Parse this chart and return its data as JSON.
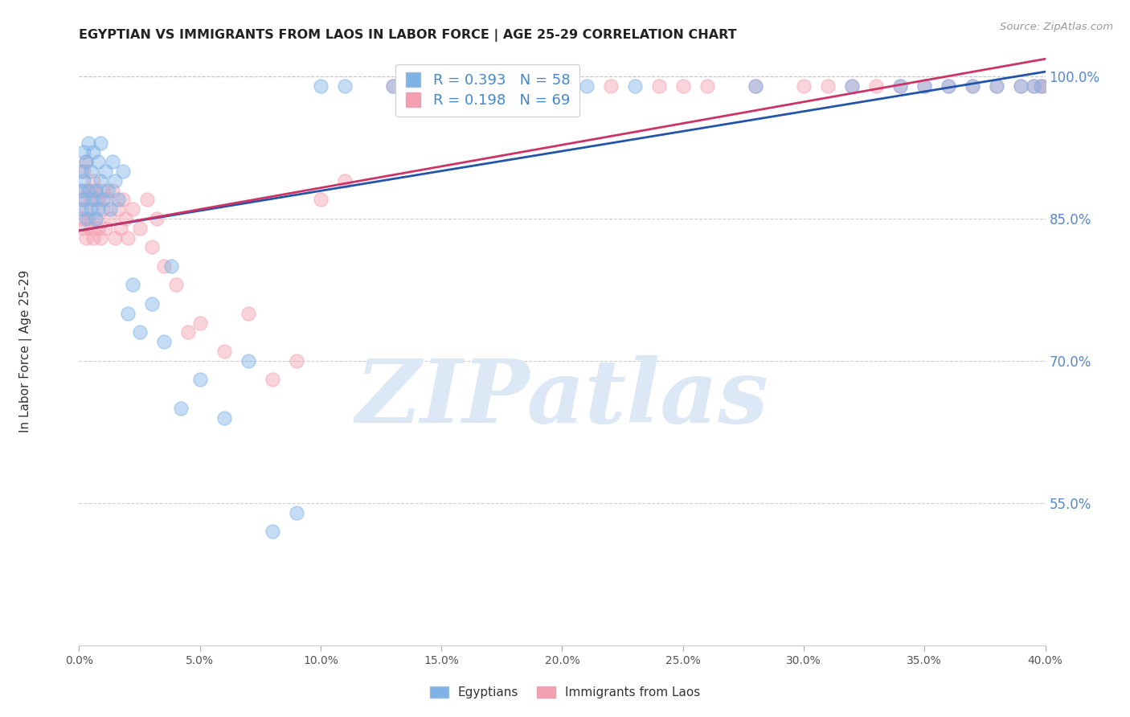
{
  "title": "EGYPTIAN VS IMMIGRANTS FROM LAOS IN LABOR FORCE | AGE 25-29 CORRELATION CHART",
  "source": "Source: ZipAtlas.com",
  "ylabel": "In Labor Force | Age 25-29",
  "xlim": [
    0.0,
    0.4
  ],
  "ylim": [
    0.4,
    1.02
  ],
  "xticks": [
    0.0,
    0.05,
    0.1,
    0.15,
    0.2,
    0.25,
    0.3,
    0.35,
    0.4
  ],
  "yticks": [
    0.55,
    0.7,
    0.85,
    1.0
  ],
  "ytick_labels": [
    "55.0%",
    "70.0%",
    "85.0%",
    "100.0%"
  ],
  "xtick_labels": [
    "0.0%",
    "5.0%",
    "10.0%",
    "15.0%",
    "20.0%",
    "25.0%",
    "30.0%",
    "35.0%",
    "40.0%"
  ],
  "legend_line1": "R = 0.393   N = 58",
  "legend_line2": "R = 0.198   N = 69",
  "blue_color": "#7EB3E8",
  "pink_color": "#F4A0B0",
  "trend_blue_color": "#2255AA",
  "trend_pink_color": "#CC3366",
  "watermark": "ZIPatlas",
  "watermark_color": "#DCE8F5",
  "blue_label": "Egyptians",
  "pink_label": "Immigrants from Laos",
  "egyptians_x": [
    0.001,
    0.001,
    0.001,
    0.002,
    0.002,
    0.002,
    0.003,
    0.003,
    0.004,
    0.004,
    0.005,
    0.005,
    0.006,
    0.006,
    0.007,
    0.007,
    0.008,
    0.008,
    0.009,
    0.009,
    0.01,
    0.011,
    0.012,
    0.013,
    0.014,
    0.015,
    0.016,
    0.018,
    0.02,
    0.022,
    0.025,
    0.03,
    0.035,
    0.038,
    0.042,
    0.05,
    0.06,
    0.07,
    0.08,
    0.09,
    0.1,
    0.11,
    0.13,
    0.15,
    0.17,
    0.19,
    0.21,
    0.23,
    0.28,
    0.32,
    0.34,
    0.35,
    0.36,
    0.37,
    0.38,
    0.39,
    0.395,
    0.398
  ],
  "egyptians_y": [
    0.86,
    0.88,
    0.9,
    0.87,
    0.89,
    0.92,
    0.85,
    0.91,
    0.88,
    0.93,
    0.86,
    0.9,
    0.87,
    0.92,
    0.85,
    0.88,
    0.91,
    0.86,
    0.89,
    0.93,
    0.87,
    0.9,
    0.88,
    0.86,
    0.91,
    0.89,
    0.87,
    0.9,
    0.75,
    0.78,
    0.73,
    0.76,
    0.72,
    0.8,
    0.65,
    0.68,
    0.64,
    0.7,
    0.52,
    0.54,
    0.99,
    0.99,
    0.99,
    0.99,
    0.99,
    0.99,
    0.99,
    0.99,
    0.99,
    0.99,
    0.99,
    0.99,
    0.99,
    0.99,
    0.99,
    0.99,
    0.99,
    0.99
  ],
  "laos_x": [
    0.001,
    0.001,
    0.002,
    0.002,
    0.002,
    0.003,
    0.003,
    0.003,
    0.004,
    0.004,
    0.005,
    0.005,
    0.006,
    0.006,
    0.007,
    0.007,
    0.008,
    0.008,
    0.009,
    0.01,
    0.01,
    0.011,
    0.012,
    0.013,
    0.014,
    0.015,
    0.016,
    0.017,
    0.018,
    0.019,
    0.02,
    0.022,
    0.025,
    0.028,
    0.03,
    0.032,
    0.035,
    0.04,
    0.045,
    0.05,
    0.06,
    0.07,
    0.08,
    0.09,
    0.1,
    0.11,
    0.13,
    0.15,
    0.16,
    0.18,
    0.2,
    0.22,
    0.24,
    0.25,
    0.26,
    0.28,
    0.3,
    0.31,
    0.32,
    0.33,
    0.34,
    0.35,
    0.36,
    0.37,
    0.38,
    0.39,
    0.395,
    0.398,
    0.399
  ],
  "laos_y": [
    0.85,
    0.87,
    0.84,
    0.88,
    0.9,
    0.83,
    0.86,
    0.91,
    0.85,
    0.88,
    0.84,
    0.87,
    0.83,
    0.89,
    0.85,
    0.88,
    0.84,
    0.87,
    0.83,
    0.86,
    0.88,
    0.84,
    0.87,
    0.85,
    0.88,
    0.83,
    0.86,
    0.84,
    0.87,
    0.85,
    0.83,
    0.86,
    0.84,
    0.87,
    0.82,
    0.85,
    0.8,
    0.78,
    0.73,
    0.74,
    0.71,
    0.75,
    0.68,
    0.7,
    0.87,
    0.89,
    0.99,
    0.99,
    0.99,
    0.99,
    0.99,
    0.99,
    0.99,
    0.99,
    0.99,
    0.99,
    0.99,
    0.99,
    0.99,
    0.99,
    0.99,
    0.99,
    0.99,
    0.99,
    0.99,
    0.99,
    0.99,
    0.99,
    0.99
  ]
}
